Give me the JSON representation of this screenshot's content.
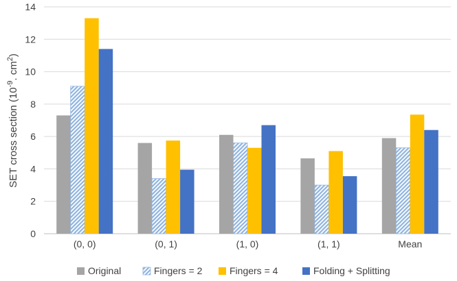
{
  "chart_data": {
    "type": "bar",
    "categories": [
      "(0, 0)",
      "(0, 1)",
      "(1, 0)",
      "(1, 1)",
      "Mean"
    ],
    "series": [
      {
        "name": "Original",
        "values": [
          7.3,
          5.6,
          6.1,
          4.65,
          5.9
        ]
      },
      {
        "name": "Fingers = 2",
        "values": [
          9.1,
          3.4,
          5.6,
          3.0,
          5.3
        ]
      },
      {
        "name": "Fingers = 4",
        "values": [
          13.3,
          5.75,
          5.3,
          5.1,
          7.35
        ]
      },
      {
        "name": "Folding + Splitting",
        "values": [
          11.4,
          3.95,
          6.7,
          3.55,
          6.4
        ]
      }
    ],
    "ylabel": {
      "main": "SET cross section (10",
      "exp1": "-9",
      "mid": ". cm",
      "exp2": "2",
      "end": ")"
    },
    "xlabel": "",
    "title": "",
    "ylim": [
      0,
      14
    ],
    "yticks": [
      0,
      2,
      4,
      6,
      8,
      10,
      12,
      14
    ],
    "grid": true,
    "legend_position": "bottom",
    "colors": [
      "#a5a5a5",
      "#9dc3e6",
      "#ffc000",
      "#4472c4"
    ],
    "patterns": [
      "solid",
      "hatched",
      "solid",
      "solid"
    ]
  }
}
